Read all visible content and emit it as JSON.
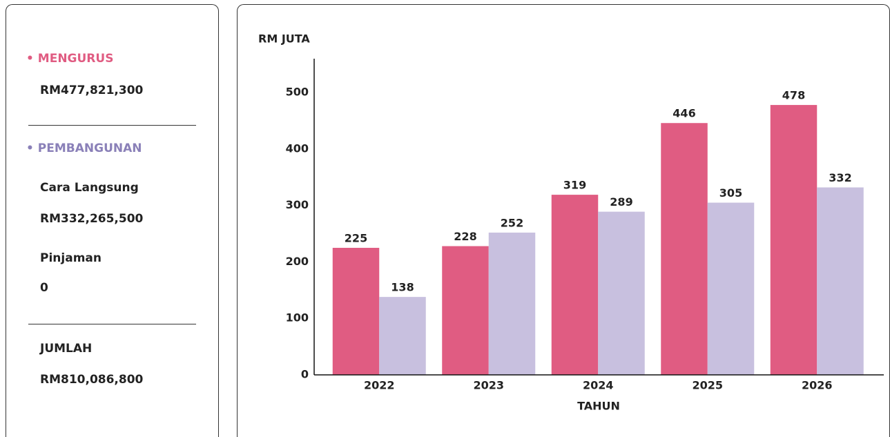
{
  "sidebar": {
    "mengurus": {
      "label": "• MENGURUS",
      "amount": "RM477,821,300"
    },
    "pembangunan": {
      "label": "• PEMBANGUNAN",
      "items": [
        {
          "label": "Cara Langsung",
          "amount": "RM332,265,500"
        },
        {
          "label": "Pinjaman",
          "amount": "0"
        }
      ]
    },
    "total": {
      "label": "JUMLAH",
      "amount": "RM810,086,800"
    }
  },
  "chart_data": {
    "type": "bar",
    "ylabel": "RM JUTA",
    "xlabel": "TAHUN",
    "categories": [
      "2022",
      "2023",
      "2024",
      "2025",
      "2026"
    ],
    "series": [
      {
        "color": "#e05c82",
        "values": [
          225,
          228,
          319,
          446,
          478
        ]
      },
      {
        "color": "#c8c0df",
        "values": [
          138,
          252,
          289,
          305,
          332
        ]
      }
    ],
    "ylim": [
      0,
      560
    ],
    "yticks": [
      0,
      100,
      200,
      300,
      400,
      500
    ],
    "grid": false
  }
}
